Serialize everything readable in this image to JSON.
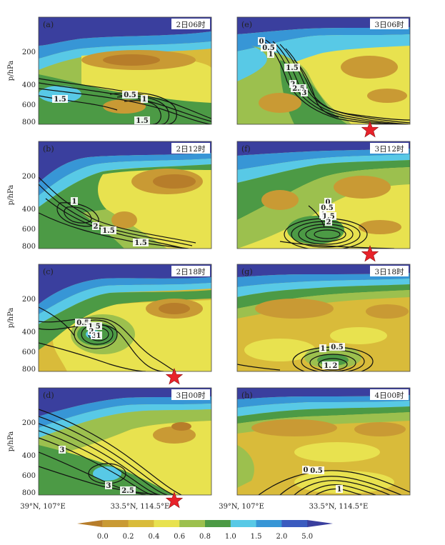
{
  "chart_data": {
    "type": "heatmap",
    "title": "",
    "y_axis_label": "p/hPa",
    "y_ticks": [
      200,
      400,
      600,
      800
    ],
    "x_labels": [
      "39°N, 107°E",
      "33.5°N, 114.5°E"
    ],
    "colorbar": {
      "levels": [
        "0.0",
        "0.2",
        "0.4",
        "0.6",
        "0.8",
        "1.0",
        "1.5",
        "2.0",
        "5.0"
      ],
      "colors": [
        "#b77d2a",
        "#c99a34",
        "#d9bb3a",
        "#e8e24f",
        "#9cc04e",
        "#4c9a45",
        "#58c9e6",
        "#3796d6",
        "#3b5bbf",
        "#3a3f9e"
      ]
    },
    "panels": [
      {
        "label": "(a)",
        "time": "2日06时",
        "contour_labels": [
          "1.5",
          "0.5",
          "1",
          "1.5"
        ],
        "star": false
      },
      {
        "label": "(b)",
        "time": "2日12时",
        "contour_labels": [
          "1",
          "2",
          "1.5",
          "1.5"
        ],
        "star": false
      },
      {
        "label": "(c)",
        "time": "2日18时",
        "contour_labels": [
          "0.5",
          "1.5",
          "2",
          "3",
          "1"
        ],
        "star": true
      },
      {
        "label": "(d)",
        "time": "3日00时",
        "contour_labels": [
          "3",
          "3",
          "2.5"
        ],
        "star": true
      },
      {
        "label": "(e)",
        "time": "3日06时",
        "contour_labels": [
          "0",
          "0.5",
          "1",
          "1.5",
          "2",
          "2.5",
          "3"
        ],
        "star": true
      },
      {
        "label": "(f)",
        "time": "3日12时",
        "contour_labels": [
          "0",
          "0.5",
          "1",
          "1.5",
          "2"
        ],
        "star": true
      },
      {
        "label": "(g)",
        "time": "3日18时",
        "contour_labels": [
          "1",
          "0.5",
          "1.5",
          "2"
        ],
        "star": false
      },
      {
        "label": "(h)",
        "time": "4日00时",
        "contour_labels": [
          "0",
          "0.5",
          "1"
        ],
        "star": false
      }
    ]
  }
}
